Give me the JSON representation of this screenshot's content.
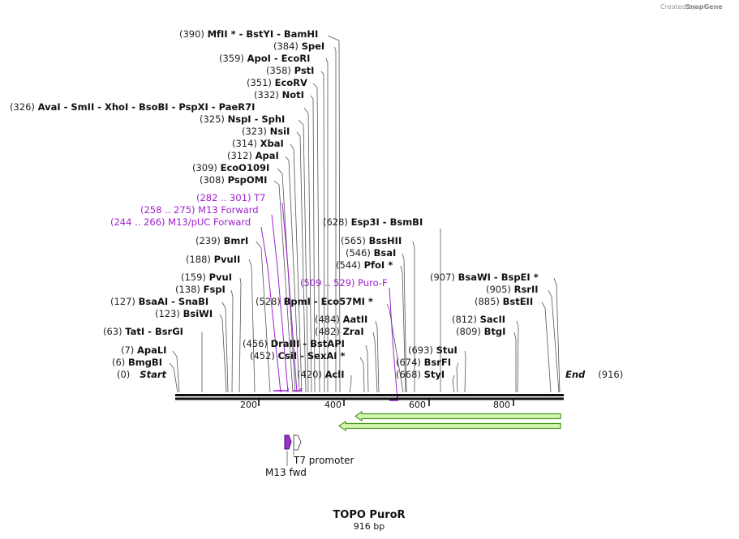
{
  "brand": {
    "created_by": "Created by",
    "name": "SnapGene"
  },
  "title": "TOPO PuroR",
  "length_label": "916 bp",
  "sequence_length": 916,
  "start_label": {
    "pos": "(0)",
    "name": "Start"
  },
  "end_label": {
    "name": "End",
    "pos": "(916)"
  },
  "axis_ticks": [
    "200",
    "400",
    "600",
    "800"
  ],
  "enzymes": [
    {
      "text": "(390)  MfII * - BstYI - BamHI",
      "pos": 390
    },
    {
      "text": "(384)  SpeI",
      "pos": 384
    },
    {
      "text": "(359)  ApoI - EcoRI",
      "pos": 359
    },
    {
      "text": "(358)  PstI",
      "pos": 358
    },
    {
      "text": "(351)  EcoRV",
      "pos": 351
    },
    {
      "text": "(332)  NotI",
      "pos": 332
    },
    {
      "text": "(326)  AvaI - SmII - XhoI - BsoBI - PspXI - PaeR7I",
      "pos": 326
    },
    {
      "text": "(325)  NspI - SphI",
      "pos": 325
    },
    {
      "text": "(323)  NsiI",
      "pos": 323
    },
    {
      "text": "(314)  XbaI",
      "pos": 314
    },
    {
      "text": "(312)  ApaI",
      "pos": 312
    },
    {
      "text": "(309)  EcoO109I",
      "pos": 309
    },
    {
      "text": "(308)  PspOMI",
      "pos": 308
    },
    {
      "text": "(239)  BmrI",
      "pos": 239
    },
    {
      "text": "(188)  PvuII",
      "pos": 188
    },
    {
      "text": "(159)  PvuI",
      "pos": 159
    },
    {
      "text": "(138)  FspI",
      "pos": 138
    },
    {
      "text": "(127)  BsaAI - SnaBI",
      "pos": 127
    },
    {
      "text": "(123)  BsiWI",
      "pos": 123
    },
    {
      "text": "(63)  TatI - BsrGI",
      "pos": 63
    },
    {
      "text": "(7)  ApaLI",
      "pos": 7
    },
    {
      "text": "(6)  BmgBI",
      "pos": 6
    },
    {
      "text": "(528)  BpmI - Eco57MI *",
      "pos": 528
    },
    {
      "text": "(456)  DraIII - BstAPI",
      "pos": 456
    },
    {
      "text": "(452)  CsiI - SexAI *",
      "pos": 452
    },
    {
      "text": "(484)  AatII",
      "pos": 484
    },
    {
      "text": "(482)  ZraI",
      "pos": 482
    },
    {
      "text": "(420)  AclI",
      "pos": 420
    },
    {
      "text": "(628)  Esp3I - BsmBI",
      "pos": 628
    },
    {
      "text": "(565)  BssHII",
      "pos": 565
    },
    {
      "text": "(546)  BsaI",
      "pos": 546
    },
    {
      "text": "(544)  PfoI *",
      "pos": 544
    },
    {
      "text": "(693)  StuI",
      "pos": 693
    },
    {
      "text": "(674)  BsrFI",
      "pos": 674
    },
    {
      "text": "(668)  StyI",
      "pos": 668
    },
    {
      "text": "(907)  BsaWI - BspEI *",
      "pos": 907
    },
    {
      "text": "(905)  RsrII",
      "pos": 905
    },
    {
      "text": "(885)  BstEII",
      "pos": 885
    },
    {
      "text": "(812)  SacII",
      "pos": 812
    },
    {
      "text": "(809)  BtgI",
      "pos": 809
    }
  ],
  "primers": [
    {
      "text": "(282 .. 301)  T7",
      "start": 282,
      "end": 301
    },
    {
      "text": "(258 .. 275)  M13 Forward",
      "start": 258,
      "end": 275
    },
    {
      "text": "(244 .. 266)  M13/pUC Forward",
      "start": 244,
      "end": 266
    },
    {
      "text": "(509 .. 529)  Puro-F",
      "start": 509,
      "end": 529
    }
  ],
  "features": [
    {
      "label": "T7 promoter"
    },
    {
      "label": "M13 fwd"
    }
  ],
  "colors": {
    "primer": "#a020d0",
    "orf_fill": "#d6f5b0",
    "orf_stroke": "#4a9a1e",
    "backbone": "#111111"
  }
}
